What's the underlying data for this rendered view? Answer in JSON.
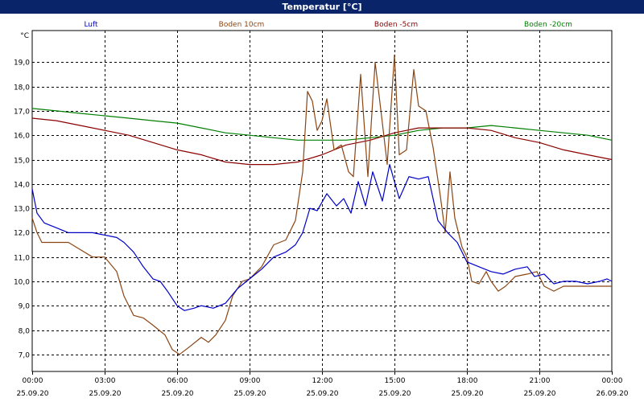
{
  "window": {
    "title": "Temperatur [°C]"
  },
  "chart_data": {
    "type": "line",
    "title": "Temperatur [°C]",
    "ylabel": "°C",
    "ylim": [
      6.3,
      20.3
    ],
    "y_ticks": [
      "7,0",
      "8,0",
      "9,0",
      "10,0",
      "11,0",
      "12,0",
      "13,0",
      "14,0",
      "15,0",
      "16,0",
      "17,0",
      "18,0",
      "19,0"
    ],
    "y_tick_values": [
      7,
      8,
      9,
      10,
      11,
      12,
      13,
      14,
      15,
      16,
      17,
      18,
      19
    ],
    "x_range_hours": [
      0,
      24
    ],
    "x_ticks": [
      {
        "time": "00:00",
        "date": "25.09.20"
      },
      {
        "time": "03:00",
        "date": "25.09.20"
      },
      {
        "time": "06:00",
        "date": "25.09.20"
      },
      {
        "time": "09:00",
        "date": "25.09.20"
      },
      {
        "time": "12:00",
        "date": "25.09.20"
      },
      {
        "time": "15:00",
        "date": "25.09.20"
      },
      {
        "time": "18:00",
        "date": "25.09.20"
      },
      {
        "time": "21:00",
        "date": "25.09.20"
      },
      {
        "time": "00:00",
        "date": "26.09.20"
      }
    ],
    "grid": true,
    "legend_position": "top",
    "series": [
      {
        "name": "Luft",
        "color": "#0000c8",
        "points": [
          [
            0,
            13.8
          ],
          [
            0.2,
            12.8
          ],
          [
            0.5,
            12.4
          ],
          [
            1,
            12.2
          ],
          [
            1.5,
            12.0
          ],
          [
            2,
            12.0
          ],
          [
            2.5,
            12.0
          ],
          [
            3,
            11.9
          ],
          [
            3.5,
            11.8
          ],
          [
            3.8,
            11.6
          ],
          [
            4.2,
            11.2
          ],
          [
            4.6,
            10.6
          ],
          [
            5,
            10.1
          ],
          [
            5.3,
            10.0
          ],
          [
            5.6,
            9.6
          ],
          [
            6,
            9.0
          ],
          [
            6.3,
            8.8
          ],
          [
            6.7,
            8.9
          ],
          [
            7,
            9.0
          ],
          [
            7.5,
            8.9
          ],
          [
            8,
            9.1
          ],
          [
            8.5,
            9.7
          ],
          [
            9,
            10.1
          ],
          [
            9.5,
            10.5
          ],
          [
            10,
            11.0
          ],
          [
            10.5,
            11.2
          ],
          [
            10.9,
            11.5
          ],
          [
            11.2,
            12.0
          ],
          [
            11.5,
            13.0
          ],
          [
            11.8,
            12.9
          ],
          [
            12.2,
            13.6
          ],
          [
            12.6,
            13.1
          ],
          [
            12.9,
            13.4
          ],
          [
            13.2,
            12.8
          ],
          [
            13.5,
            14.1
          ],
          [
            13.8,
            13.1
          ],
          [
            14.1,
            14.5
          ],
          [
            14.5,
            13.3
          ],
          [
            14.8,
            14.8
          ],
          [
            15.2,
            13.4
          ],
          [
            15.6,
            14.3
          ],
          [
            16,
            14.2
          ],
          [
            16.4,
            14.3
          ],
          [
            16.8,
            12.5
          ],
          [
            17.2,
            12.0
          ],
          [
            17.6,
            11.6
          ],
          [
            18,
            10.8
          ],
          [
            18.5,
            10.6
          ],
          [
            19,
            10.4
          ],
          [
            19.5,
            10.3
          ],
          [
            20,
            10.5
          ],
          [
            20.5,
            10.6
          ],
          [
            20.8,
            10.2
          ],
          [
            21.2,
            10.3
          ],
          [
            21.6,
            9.9
          ],
          [
            22,
            10.0
          ],
          [
            22.5,
            10.0
          ],
          [
            23,
            9.9
          ],
          [
            23.5,
            10.0
          ],
          [
            23.8,
            10.1
          ],
          [
            24,
            10.0
          ]
        ]
      },
      {
        "name": "Boden 10cm",
        "color": "#8b4513",
        "points": [
          [
            0,
            12.6
          ],
          [
            0.2,
            12.0
          ],
          [
            0.4,
            11.6
          ],
          [
            1,
            11.6
          ],
          [
            1.5,
            11.6
          ],
          [
            2,
            11.3
          ],
          [
            2.5,
            11.0
          ],
          [
            3,
            11.0
          ],
          [
            3.5,
            10.4
          ],
          [
            3.8,
            9.4
          ],
          [
            4.2,
            8.6
          ],
          [
            4.6,
            8.5
          ],
          [
            5,
            8.2
          ],
          [
            5.5,
            7.8
          ],
          [
            5.8,
            7.2
          ],
          [
            6.1,
            7.0
          ],
          [
            6.5,
            7.3
          ],
          [
            7,
            7.7
          ],
          [
            7.3,
            7.5
          ],
          [
            7.6,
            7.8
          ],
          [
            8,
            8.4
          ],
          [
            8.3,
            9.4
          ],
          [
            8.7,
            10.0
          ],
          [
            9,
            10.1
          ],
          [
            9.5,
            10.6
          ],
          [
            10,
            11.5
          ],
          [
            10.5,
            11.7
          ],
          [
            10.9,
            12.5
          ],
          [
            11.2,
            14.5
          ],
          [
            11.4,
            17.8
          ],
          [
            11.6,
            17.4
          ],
          [
            11.8,
            16.2
          ],
          [
            12,
            16.6
          ],
          [
            12.2,
            17.5
          ],
          [
            12.5,
            15.4
          ],
          [
            12.8,
            15.6
          ],
          [
            13.1,
            14.5
          ],
          [
            13.3,
            14.3
          ],
          [
            13.6,
            18.5
          ],
          [
            13.9,
            14.3
          ],
          [
            14.2,
            19.0
          ],
          [
            14.5,
            16.5
          ],
          [
            14.7,
            14.8
          ],
          [
            15,
            19.3
          ],
          [
            15.2,
            15.2
          ],
          [
            15.5,
            15.4
          ],
          [
            15.8,
            18.7
          ],
          [
            16,
            17.2
          ],
          [
            16.3,
            17.0
          ],
          [
            16.6,
            15.5
          ],
          [
            16.9,
            13.5
          ],
          [
            17.1,
            12.0
          ],
          [
            17.3,
            14.5
          ],
          [
            17.5,
            12.6
          ],
          [
            17.8,
            11.4
          ],
          [
            18,
            11.0
          ],
          [
            18.2,
            10.0
          ],
          [
            18.5,
            9.9
          ],
          [
            18.8,
            10.4
          ],
          [
            19,
            10.0
          ],
          [
            19.3,
            9.6
          ],
          [
            19.6,
            9.8
          ],
          [
            20,
            10.2
          ],
          [
            20.5,
            10.3
          ],
          [
            20.9,
            10.4
          ],
          [
            21.2,
            9.8
          ],
          [
            21.6,
            9.6
          ],
          [
            22,
            9.8
          ],
          [
            22.5,
            9.8
          ],
          [
            23,
            9.8
          ],
          [
            23.5,
            9.8
          ],
          [
            24,
            9.8
          ]
        ]
      },
      {
        "name": "Boden -5cm",
        "color": "#8b0000",
        "points": [
          [
            0,
            16.7
          ],
          [
            1,
            16.6
          ],
          [
            2,
            16.4
          ],
          [
            3,
            16.2
          ],
          [
            4,
            16.0
          ],
          [
            5,
            15.7
          ],
          [
            6,
            15.4
          ],
          [
            7,
            15.2
          ],
          [
            8,
            14.9
          ],
          [
            9,
            14.8
          ],
          [
            10,
            14.8
          ],
          [
            11,
            14.9
          ],
          [
            12,
            15.2
          ],
          [
            13,
            15.6
          ],
          [
            14,
            15.8
          ],
          [
            15,
            16.1
          ],
          [
            16,
            16.3
          ],
          [
            17,
            16.3
          ],
          [
            18,
            16.3
          ],
          [
            19,
            16.2
          ],
          [
            20,
            15.9
          ],
          [
            21,
            15.7
          ],
          [
            22,
            15.4
          ],
          [
            23,
            15.2
          ],
          [
            24,
            15.0
          ]
        ]
      },
      {
        "name": "Boden -20cm",
        "color": "#008000",
        "points": [
          [
            0,
            17.1
          ],
          [
            1,
            17.0
          ],
          [
            2,
            16.9
          ],
          [
            3,
            16.8
          ],
          [
            4,
            16.7
          ],
          [
            5,
            16.6
          ],
          [
            6,
            16.5
          ],
          [
            7,
            16.3
          ],
          [
            8,
            16.1
          ],
          [
            9,
            16.0
          ],
          [
            10,
            15.9
          ],
          [
            11,
            15.8
          ],
          [
            12,
            15.8
          ],
          [
            13,
            15.8
          ],
          [
            14,
            15.9
          ],
          [
            15,
            16.0
          ],
          [
            16,
            16.2
          ],
          [
            17,
            16.3
          ],
          [
            18,
            16.3
          ],
          [
            19,
            16.4
          ],
          [
            20,
            16.3
          ],
          [
            21,
            16.2
          ],
          [
            22,
            16.1
          ],
          [
            23,
            16.0
          ],
          [
            24,
            15.8
          ]
        ]
      }
    ]
  }
}
